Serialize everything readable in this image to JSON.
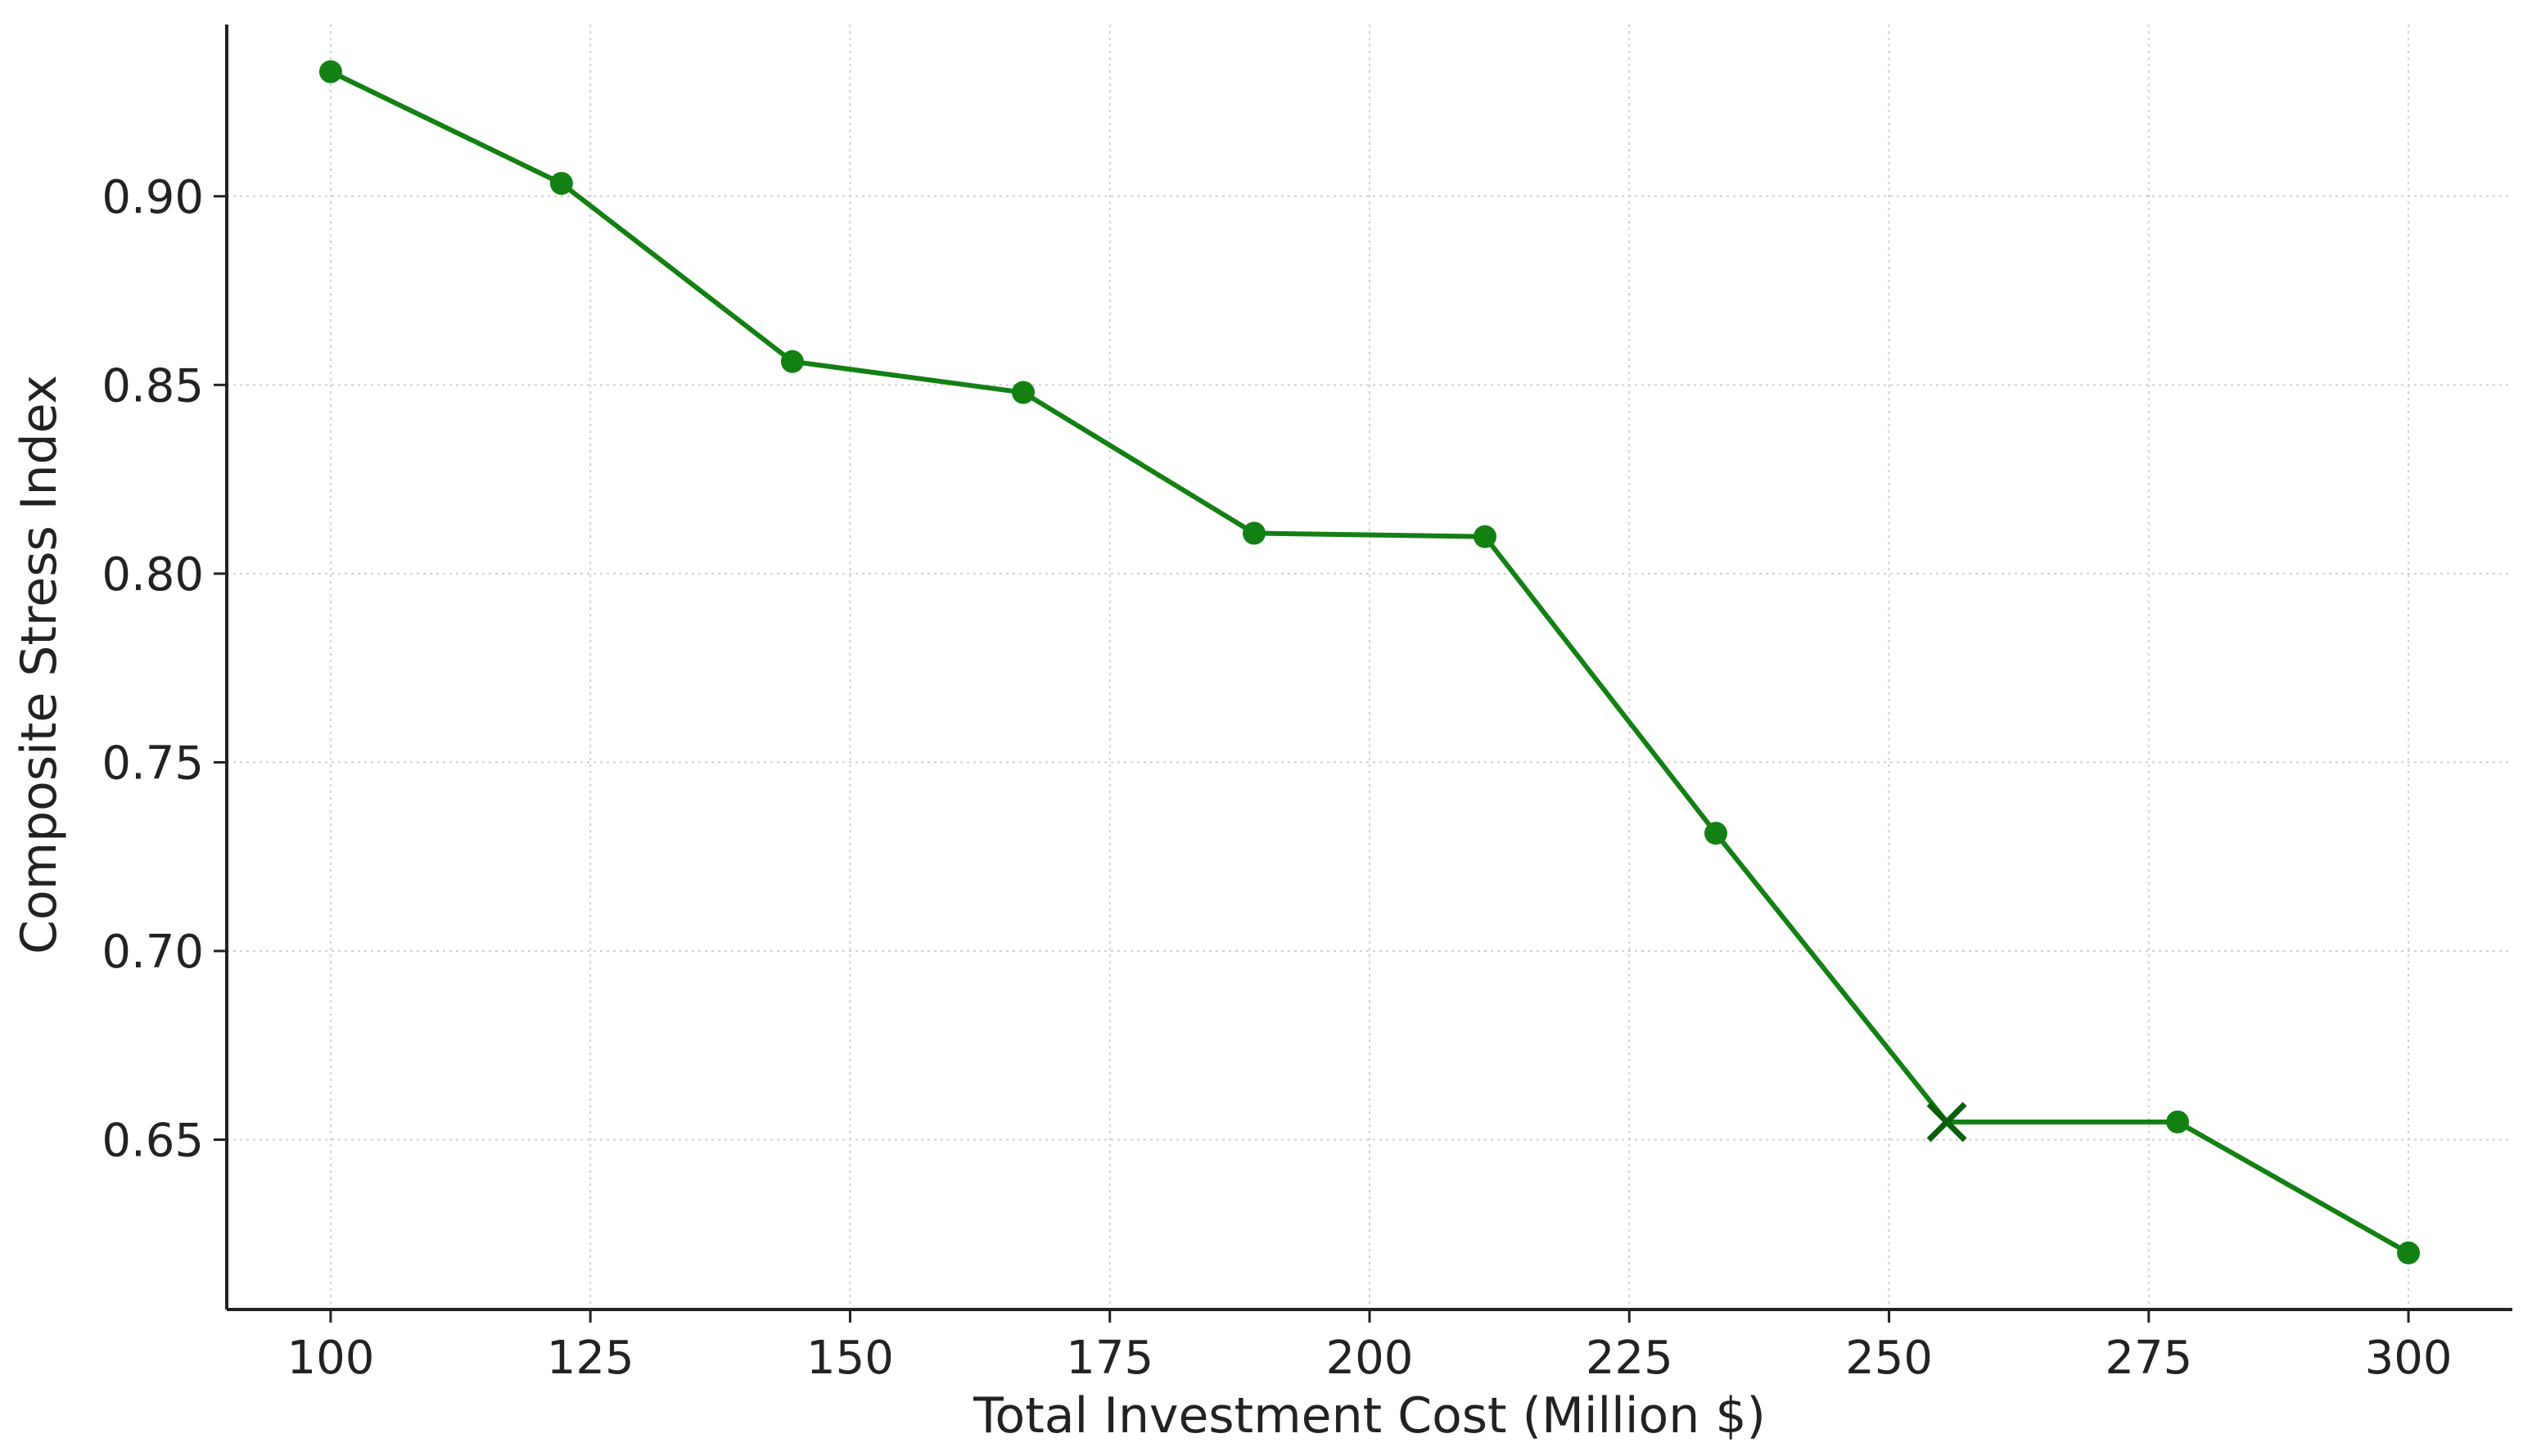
{
  "chart_data": {
    "type": "line",
    "x_label": "Total Investment Cost (Million $)",
    "y_label": "Composite Stress Index",
    "x": [
      100,
      122.22,
      144.44,
      166.67,
      188.89,
      211.11,
      233.33,
      255.56,
      277.78,
      300
    ],
    "series": [
      {
        "name": "Composite Stress Index",
        "color": "#138013",
        "values": [
          0.933,
          0.9034,
          0.8562,
          0.848,
          0.8107,
          0.8098,
          0.7312,
          0.6547,
          0.6547,
          0.62
        ],
        "markers": [
          "o",
          "o",
          "o",
          "o",
          "o",
          "o",
          "o",
          "x",
          "o",
          "o"
        ]
      }
    ],
    "xlim": [
      90,
      310
    ],
    "xticks": [
      100,
      125,
      150,
      175,
      200,
      225,
      250,
      275,
      300
    ],
    "ylim": [
      0.605,
      0.9455
    ],
    "yticks": [
      {
        "value": 0.65,
        "label": "0.65"
      },
      {
        "value": 0.7,
        "label": "0.70"
      },
      {
        "value": 0.75,
        "label": "0.75"
      },
      {
        "value": 0.8,
        "label": "0.80"
      },
      {
        "value": 0.85,
        "label": "0.85"
      },
      {
        "value": 0.9,
        "label": "0.90"
      }
    ],
    "grid": true
  }
}
